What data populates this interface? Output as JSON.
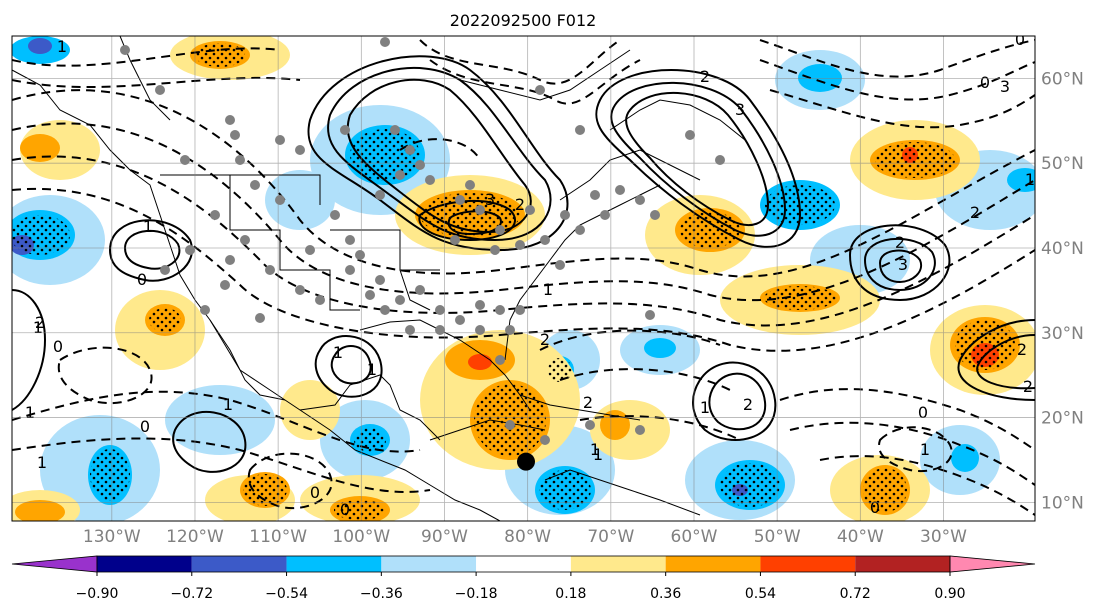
{
  "title": "2022092500 F012",
  "map": {
    "projection": "PlateCarree",
    "lon_range": [
      -142,
      -19
    ],
    "lat_range": [
      7.8,
      65
    ],
    "lon_ticks": [
      {
        "value": -130,
        "label": "130°W"
      },
      {
        "value": -120,
        "label": "120°W"
      },
      {
        "value": -110,
        "label": "110°W"
      },
      {
        "value": -100,
        "label": "100°W"
      },
      {
        "value": -90,
        "label": "90°W"
      },
      {
        "value": -80,
        "label": "80°W"
      },
      {
        "value": -70,
        "label": "70°W"
      },
      {
        "value": -60,
        "label": "60°W"
      },
      {
        "value": -50,
        "label": "50°W"
      },
      {
        "value": -40,
        "label": "40°W"
      },
      {
        "value": -30,
        "label": "30°W"
      }
    ],
    "lat_ticks": [
      {
        "value": 10,
        "label": "10°N"
      },
      {
        "value": 20,
        "label": "20°N"
      },
      {
        "value": 30,
        "label": "30°N"
      },
      {
        "value": 40,
        "label": "40°N"
      },
      {
        "value": 50,
        "label": "50°N"
      },
      {
        "value": 60,
        "label": "60°N"
      }
    ],
    "grid": true,
    "tick_color": "#808080",
    "marker": {
      "lon": -80.2,
      "lat": 14.8,
      "color": "#000000"
    }
  },
  "colorbar": {
    "orientation": "horizontal",
    "extend": "both",
    "colors": [
      "#9932cc",
      "#00008b",
      "#3c5ac8",
      "#00bfff",
      "#b0e0fa",
      "#ffffff",
      "#ffe98c",
      "#ffa500",
      "#ff4000",
      "#b22222",
      "#ff88b0"
    ],
    "boundaries": [
      -0.9,
      -0.72,
      -0.54,
      -0.36,
      -0.18,
      0.18,
      0.36,
      0.54,
      0.72,
      0.9
    ],
    "labels": [
      "−0.90",
      "−0.72",
      "−0.54",
      "−0.36",
      "−0.18",
      "0.18",
      "0.36",
      "0.54",
      "0.72",
      "0.90"
    ]
  },
  "contour_labels": [
    "1",
    "1",
    "0",
    "0",
    "1",
    "0",
    "1",
    "0",
    "2",
    "1",
    "3",
    "2",
    "3",
    "2",
    "3",
    "2",
    "2",
    "0",
    "1",
    "0",
    "1",
    "1",
    "1",
    "2",
    "0",
    "1",
    "2",
    "1",
    "1",
    "0",
    "0",
    "1",
    "2",
    "3",
    "2",
    "1",
    "2"
  ]
}
